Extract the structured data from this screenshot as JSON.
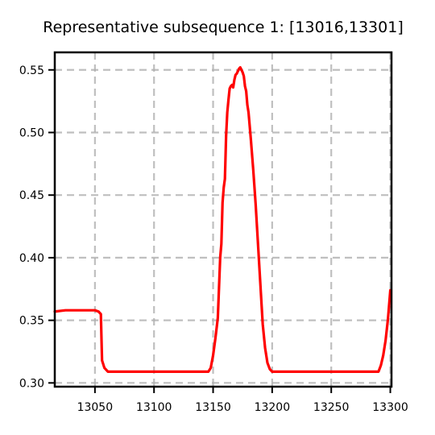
{
  "chart_data": {
    "type": "line",
    "title": "Representative subsequence 1: [13016,13301]",
    "xlabel": "",
    "ylabel": "",
    "xlim": [
      13016,
      13301
    ],
    "ylim": [
      0.297,
      0.564
    ],
    "grid": true,
    "legend": "none",
    "x_ticks": [
      13050,
      13100,
      13150,
      13200,
      13250,
      13300
    ],
    "x_tick_labels": [
      "13050",
      "13100",
      "13150",
      "13200",
      "13250",
      "13300"
    ],
    "y_ticks": [
      0.3,
      0.35,
      0.4,
      0.45,
      0.5,
      0.55
    ],
    "y_tick_labels": [
      "0.30",
      "0.35",
      "0.40",
      "0.45",
      "0.50",
      "0.55"
    ],
    "series": [
      {
        "color": "#ff0000",
        "x": [
          13016,
          13025,
          13035,
          13045,
          13050,
          13053,
          13055,
          13056,
          13058,
          13061,
          13065,
          13080,
          13100,
          13120,
          13140,
          13146,
          13148,
          13150,
          13152,
          13154,
          13156,
          13157,
          13158,
          13159,
          13160,
          13161,
          13162,
          13163,
          13164,
          13165,
          13166,
          13167,
          13168,
          13169,
          13170,
          13171,
          13172,
          13173,
          13174,
          13175,
          13176,
          13177,
          13178,
          13179,
          13180,
          13182,
          13184,
          13186,
          13188,
          13190,
          13192,
          13194,
          13196,
          13198,
          13200,
          13202,
          13205,
          13220,
          13240,
          13260,
          13280,
          13290,
          13292,
          13294,
          13296,
          13298,
          13300
        ],
        "y": [
          0.357,
          0.358,
          0.358,
          0.358,
          0.358,
          0.357,
          0.355,
          0.318,
          0.312,
          0.309,
          0.309,
          0.309,
          0.309,
          0.309,
          0.309,
          0.309,
          0.312,
          0.322,
          0.336,
          0.352,
          0.4,
          0.411,
          0.444,
          0.456,
          0.463,
          0.497,
          0.516,
          0.526,
          0.535,
          0.537,
          0.538,
          0.536,
          0.542,
          0.546,
          0.547,
          0.549,
          0.551,
          0.552,
          0.55,
          0.548,
          0.545,
          0.537,
          0.533,
          0.522,
          0.516,
          0.494,
          0.47,
          0.443,
          0.411,
          0.379,
          0.347,
          0.328,
          0.316,
          0.311,
          0.309,
          0.309,
          0.309,
          0.309,
          0.309,
          0.309,
          0.309,
          0.309,
          0.314,
          0.322,
          0.334,
          0.351,
          0.374
        ]
      }
    ]
  }
}
